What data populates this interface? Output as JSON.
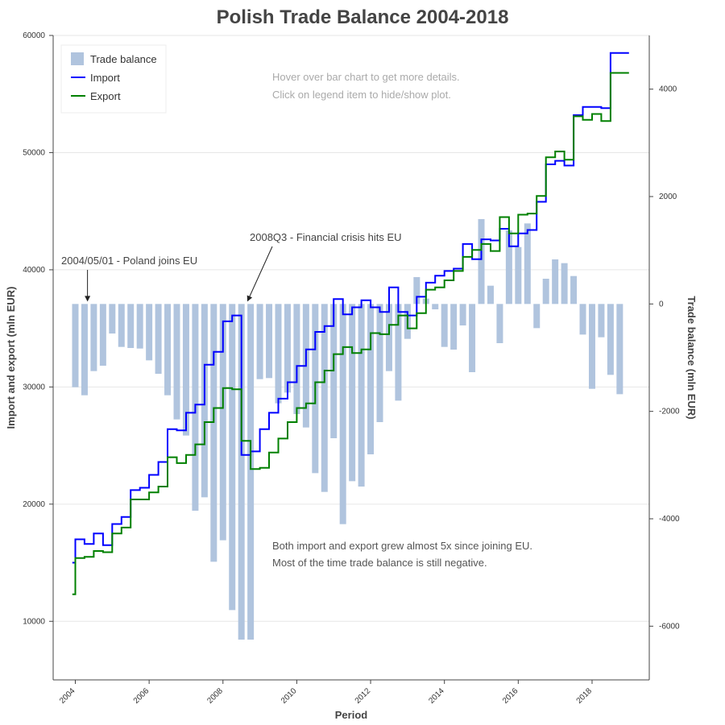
{
  "chart_data": {
    "type": "bar+line",
    "title": "Polish Trade Balance 2004-2018",
    "xlabel": "Period",
    "ylabel_left": "Import and export (mln EUR)",
    "ylabel_right": "Trade balance (mln EUR)",
    "xlim": [
      2003.4,
      2019.55
    ],
    "ylim_left": [
      5000,
      60000
    ],
    "ylim_right": [
      -7000,
      5000
    ],
    "x_ticks": [
      2004,
      2006,
      2008,
      2010,
      2012,
      2014,
      2016,
      2018
    ],
    "y_ticks_left": [
      10000,
      20000,
      30000,
      40000,
      50000,
      60000
    ],
    "y_ticks_right": [
      -6000,
      -4000,
      -2000,
      0,
      2000,
      4000
    ],
    "grid": "horizontal",
    "legend_position": "top-left",
    "legend": [
      {
        "label": "Trade balance",
        "color": "#b0c4de",
        "kind": "bar"
      },
      {
        "label": "Import",
        "color": "#0000ff",
        "kind": "line"
      },
      {
        "label": "Export",
        "color": "#008000",
        "kind": "line"
      }
    ],
    "hint_lines": [
      "Hover over bar chart to get more details.",
      "Click on legend item to hide/show plot."
    ],
    "annotations": [
      {
        "text": "2004/05/01 - Poland joins EU",
        "x": 2004.33,
        "y_balance": 0
      },
      {
        "text": "2008Q3 - Financial crisis hits EU",
        "x": 2008.66,
        "y_balance": 0
      }
    ],
    "summary_lines": [
      "Both import and export grew almost 5x since joining EU.",
      "Most of the time trade balance is still negative."
    ],
    "series": [
      {
        "name": "Trade balance",
        "x": [
          2004.0,
          2004.25,
          2004.5,
          2004.75,
          2005.0,
          2005.25,
          2005.5,
          2005.75,
          2006.0,
          2006.25,
          2006.5,
          2006.75,
          2007.0,
          2007.25,
          2007.5,
          2007.75,
          2008.0,
          2008.25,
          2008.5,
          2008.75,
          2009.0,
          2009.25,
          2009.5,
          2009.75,
          2010.0,
          2010.25,
          2010.5,
          2010.75,
          2011.0,
          2011.25,
          2011.5,
          2011.75,
          2012.0,
          2012.25,
          2012.5,
          2012.75,
          2013.0,
          2013.25,
          2013.5,
          2013.75,
          2014.0,
          2014.25,
          2014.5,
          2014.75,
          2015.0,
          2015.25,
          2015.5,
          2015.75,
          2016.0,
          2016.25,
          2016.5,
          2016.75,
          2017.0,
          2017.25,
          2017.5,
          2017.75,
          2018.0,
          2018.25,
          2018.5,
          2018.75
        ],
        "values": [
          -1550,
          -1700,
          -1250,
          -1150,
          -550,
          -800,
          -820,
          -830,
          -1050,
          -1300,
          -1700,
          -2150,
          -2450,
          -3850,
          -3600,
          -4800,
          -4400,
          -5700,
          -6250,
          -6250,
          -1400,
          -1380,
          -1850,
          -1650,
          -2050,
          -2300,
          -3150,
          -3500,
          -2500,
          -4100,
          -3300,
          -3400,
          -2800,
          -2200,
          -1250,
          -1800,
          -650,
          500,
          100,
          -100,
          -800,
          -850,
          -400,
          -1270,
          1580,
          340,
          -730,
          1370,
          1060,
          1500,
          -450,
          470,
          830,
          760,
          520,
          -570,
          -1580,
          -620,
          -1320,
          -1680
        ]
      },
      {
        "name": "Import",
        "x": [
          2003.92,
          2004.0,
          2004.25,
          2004.5,
          2004.75,
          2005.0,
          2005.25,
          2005.5,
          2005.75,
          2006.0,
          2006.25,
          2006.5,
          2006.75,
          2007.0,
          2007.25,
          2007.5,
          2007.75,
          2008.0,
          2008.25,
          2008.5,
          2008.75,
          2009.0,
          2009.25,
          2009.5,
          2009.75,
          2010.0,
          2010.25,
          2010.5,
          2010.75,
          2011.0,
          2011.25,
          2011.5,
          2011.75,
          2012.0,
          2012.25,
          2012.5,
          2012.75,
          2013.0,
          2013.25,
          2013.5,
          2013.75,
          2014.0,
          2014.25,
          2014.5,
          2014.75,
          2015.0,
          2015.25,
          2015.5,
          2015.75,
          2016.0,
          2016.25,
          2016.5,
          2016.75,
          2017.0,
          2017.25,
          2017.5,
          2017.75,
          2018.0,
          2018.25,
          2018.5,
          2018.75
        ],
        "values": [
          15000,
          17000,
          16600,
          17500,
          16500,
          18300,
          18900,
          21200,
          21400,
          22500,
          23600,
          26400,
          26300,
          27800,
          28500,
          31900,
          33000,
          35600,
          36100,
          24200,
          24500,
          26400,
          27800,
          29000,
          30400,
          31800,
          33200,
          34700,
          35200,
          37500,
          36200,
          36800,
          37400,
          36800,
          36400,
          38500,
          36400,
          36100,
          37700,
          38900,
          39500,
          39900,
          40100,
          42200,
          40900,
          42600,
          42500,
          43500,
          42000,
          43100,
          43400,
          45800,
          49000,
          49300,
          48900,
          53200,
          53900,
          53900,
          53800,
          58500,
          58500
        ]
      },
      {
        "name": "Export",
        "x": [
          2003.92,
          2004.0,
          2004.25,
          2004.5,
          2004.75,
          2005.0,
          2005.25,
          2005.5,
          2005.75,
          2006.0,
          2006.25,
          2006.5,
          2006.75,
          2007.0,
          2007.25,
          2007.5,
          2007.75,
          2008.0,
          2008.25,
          2008.5,
          2008.75,
          2009.0,
          2009.25,
          2009.5,
          2009.75,
          2010.0,
          2010.25,
          2010.5,
          2010.75,
          2011.0,
          2011.25,
          2011.5,
          2011.75,
          2012.0,
          2012.25,
          2012.5,
          2012.75,
          2013.0,
          2013.25,
          2013.5,
          2013.75,
          2014.0,
          2014.25,
          2014.5,
          2014.75,
          2015.0,
          2015.25,
          2015.5,
          2015.75,
          2016.0,
          2016.25,
          2016.5,
          2016.75,
          2017.0,
          2017.25,
          2017.5,
          2017.75,
          2018.0,
          2018.25,
          2018.5,
          2018.75
        ],
        "values": [
          12300,
          15400,
          15500,
          16000,
          15900,
          17500,
          18000,
          20400,
          20400,
          21000,
          21500,
          24000,
          23500,
          24200,
          25100,
          27000,
          28200,
          29900,
          29800,
          25400,
          23000,
          23100,
          24400,
          25600,
          27000,
          28200,
          28600,
          30400,
          31400,
          32800,
          33400,
          32900,
          33200,
          34600,
          34500,
          35300,
          36100,
          35000,
          36300,
          38300,
          38500,
          39100,
          39900,
          41100,
          41700,
          42200,
          41600,
          44500,
          43100,
          44700,
          44800,
          46300,
          49600,
          50100,
          49400,
          53100,
          52800,
          53300,
          52700,
          56800,
          56800
        ]
      }
    ]
  }
}
